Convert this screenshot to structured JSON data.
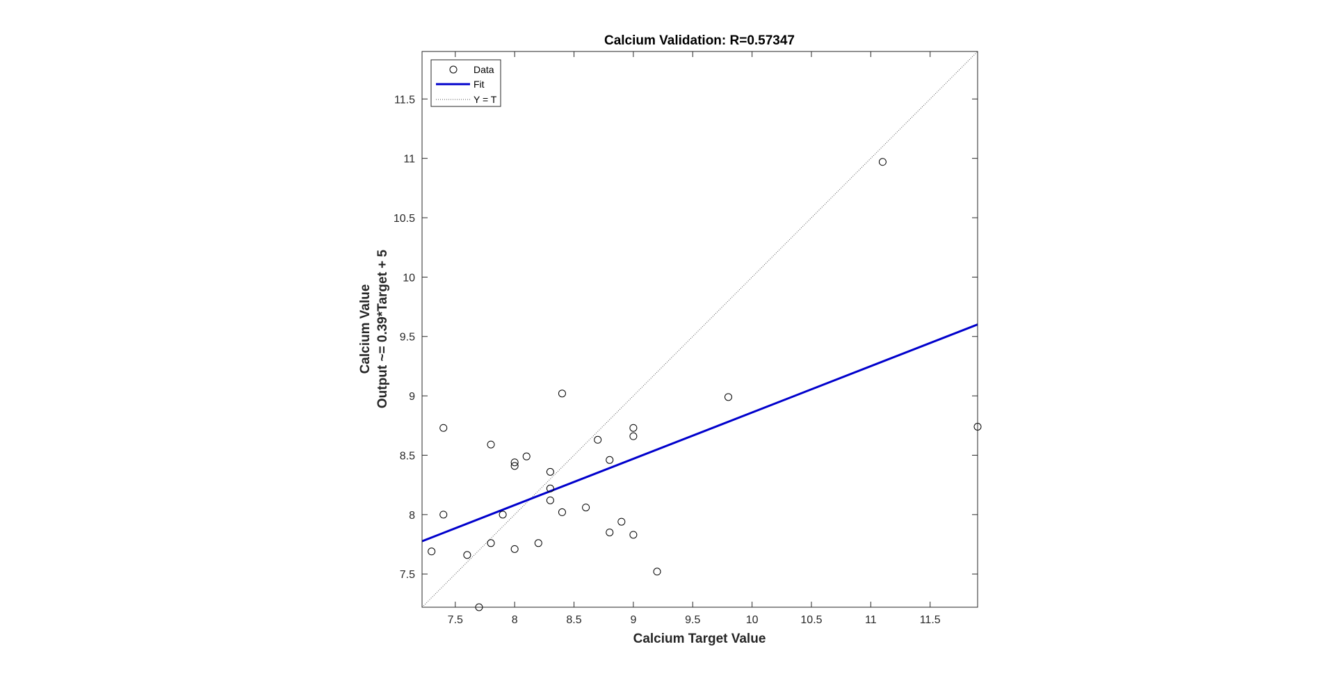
{
  "chart_data": {
    "type": "scatter",
    "title": "Calcium Validation: R=0.57347",
    "xlabel": "Calcium Target Value",
    "ylabel_lines": [
      "Calcium Value",
      "Output ~= 0.39*Target + 5"
    ],
    "xlim": [
      7.22,
      11.9
    ],
    "ylim": [
      7.22,
      11.9
    ],
    "xticks": [
      7.5,
      8,
      8.5,
      9,
      9.5,
      10,
      10.5,
      11,
      11.5
    ],
    "yticks": [
      7.5,
      8,
      8.5,
      9,
      9.5,
      10,
      10.5,
      11,
      11.5
    ],
    "xtick_labels": [
      "7.5",
      "8",
      "8.5",
      "9",
      "9.5",
      "10",
      "10.5",
      "11",
      "11.5"
    ],
    "ytick_labels": [
      "7.5",
      "8",
      "8.5",
      "9",
      "9.5",
      "10",
      "10.5",
      "11",
      "11.5"
    ],
    "grid": false,
    "legend_position": "top-left",
    "legend": [
      {
        "label": "Data",
        "kind": "marker"
      },
      {
        "label": "Fit",
        "kind": "line"
      },
      {
        "label": "Y = T",
        "kind": "dotted"
      }
    ],
    "colors": {
      "data": "#000000",
      "fit": "#0000cc",
      "identity": "#555555"
    },
    "fit": {
      "slope": 0.39,
      "intercept": 4.96
    },
    "points": [
      {
        "x": 7.3,
        "y": 7.69
      },
      {
        "x": 7.4,
        "y": 8.73
      },
      {
        "x": 7.4,
        "y": 8.0
      },
      {
        "x": 7.6,
        "y": 7.66
      },
      {
        "x": 7.7,
        "y": 7.22
      },
      {
        "x": 7.8,
        "y": 8.59
      },
      {
        "x": 7.8,
        "y": 7.76
      },
      {
        "x": 7.9,
        "y": 8.0
      },
      {
        "x": 8.0,
        "y": 8.44
      },
      {
        "x": 8.0,
        "y": 8.41
      },
      {
        "x": 8.0,
        "y": 7.71
      },
      {
        "x": 8.1,
        "y": 8.49
      },
      {
        "x": 8.2,
        "y": 7.76
      },
      {
        "x": 8.3,
        "y": 8.36
      },
      {
        "x": 8.3,
        "y": 8.22
      },
      {
        "x": 8.3,
        "y": 8.12
      },
      {
        "x": 8.4,
        "y": 9.02
      },
      {
        "x": 8.4,
        "y": 8.02
      },
      {
        "x": 8.6,
        "y": 8.06
      },
      {
        "x": 8.7,
        "y": 8.63
      },
      {
        "x": 8.8,
        "y": 8.46
      },
      {
        "x": 8.8,
        "y": 7.85
      },
      {
        "x": 8.9,
        "y": 7.94
      },
      {
        "x": 9.0,
        "y": 8.73
      },
      {
        "x": 9.0,
        "y": 8.66
      },
      {
        "x": 9.0,
        "y": 7.83
      },
      {
        "x": 9.2,
        "y": 7.52
      },
      {
        "x": 9.8,
        "y": 8.99
      },
      {
        "x": 11.1,
        "y": 10.97
      },
      {
        "x": 11.9,
        "y": 8.74
      }
    ]
  }
}
